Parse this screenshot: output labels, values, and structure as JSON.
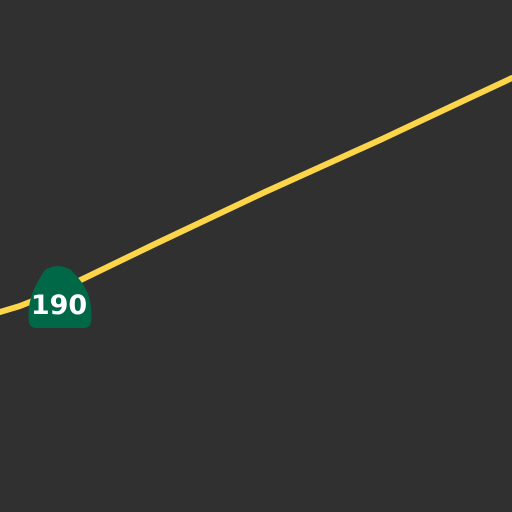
{
  "map": {
    "background_color": "#303030",
    "road": {
      "type": "highway",
      "color": "#FCD548"
    },
    "route_shield": {
      "number": "190",
      "shape": "california-state-route-shield",
      "fill_color": "#006747",
      "text_color": "#FFFFFF"
    }
  }
}
